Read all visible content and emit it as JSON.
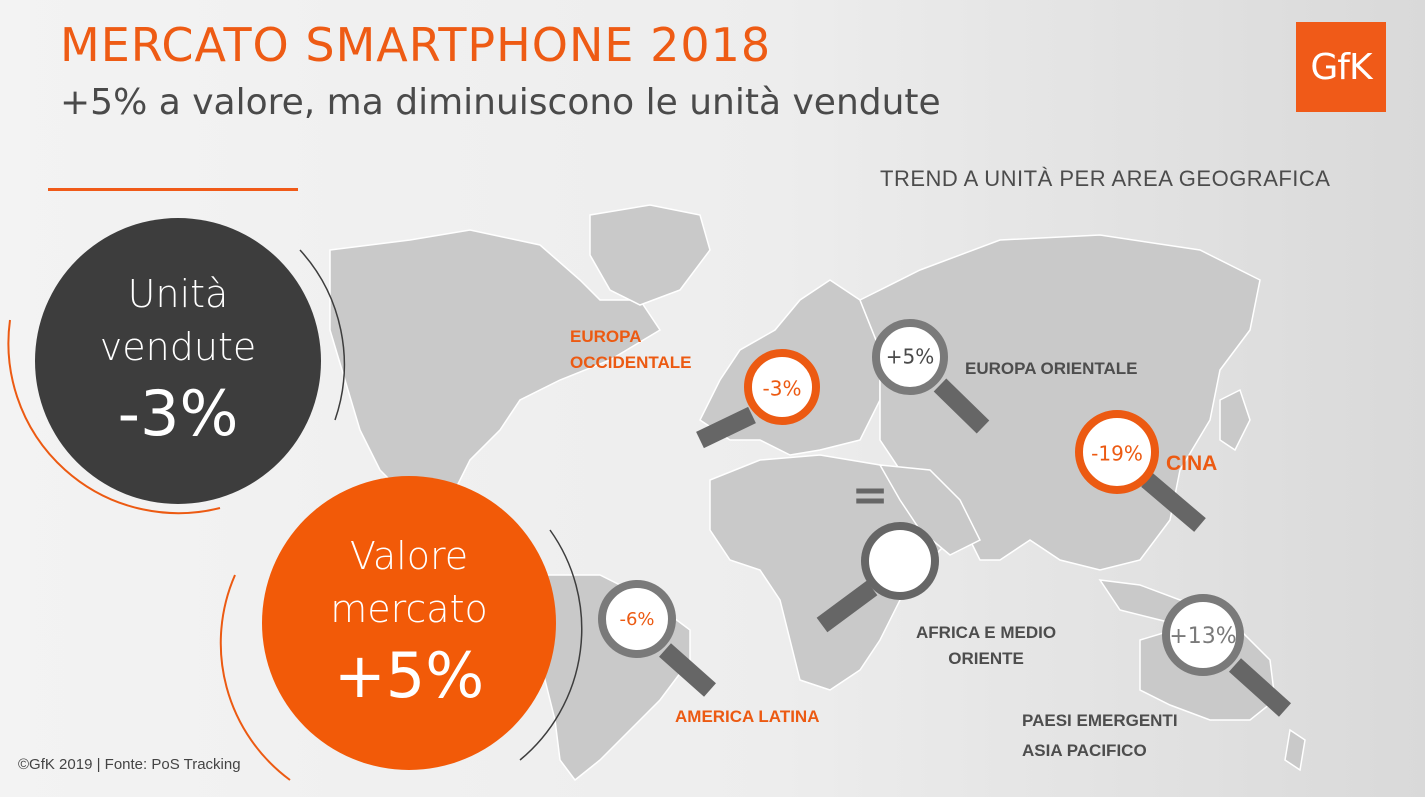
{
  "header": {
    "title": "MERCATO SMARTPHONE 2018",
    "subtitle": "+5% a valore, ma diminuiscono le unità vendute",
    "logo_text": "GfK"
  },
  "trend_heading": "TREND A UNITÀ PER AREA GEOGRAFICA",
  "kpis": {
    "units": {
      "line1": "Unità",
      "line2": "vendute",
      "value": "-3%"
    },
    "market_value": {
      "line1": "Valore",
      "line2": "mercato",
      "value": "+5%"
    }
  },
  "regions": {
    "western_europe": {
      "label_line1": "EUROPA",
      "label_line2": "OCCIDENTALE",
      "value": "-3%"
    },
    "eastern_europe": {
      "label": "EUROPA ORIENTALE",
      "value": "+5%"
    },
    "china": {
      "label": "CINA",
      "value": "-19%"
    },
    "africa_me": {
      "label_line1": "AFRICA E MEDIO",
      "label_line2": "ORIENTE",
      "value": "="
    },
    "latin_america": {
      "label": "AMERICA LATINA",
      "value": "-6%"
    },
    "apac_emerging": {
      "label_line1": "PAESI EMERGENTI",
      "label_line2": "ASIA PACIFICO",
      "value": "+13%"
    }
  },
  "footer": "©GfK 2019 | Fonte: PoS Tracking",
  "colors": {
    "accent": "#f05a18",
    "dark_circle": "#3d3d3d",
    "map_land": "#c8c8c8",
    "lens_handle": "#666666",
    "negative_ring": "#ec5a12",
    "neutral_ring": "#7a7a7a"
  }
}
